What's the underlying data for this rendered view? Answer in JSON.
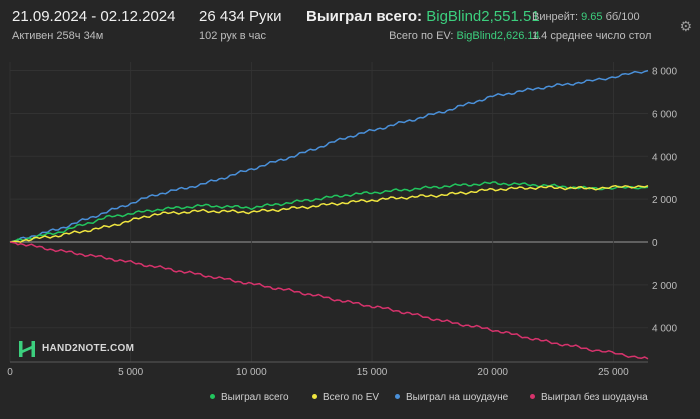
{
  "header": {
    "date_range": "21.09.2024 - 02.12.2024",
    "active": "Активен 258ч 34м",
    "hands": "26 434 Руки",
    "hands_per_hour": "102 рук в час",
    "won_label": "Выиграл всего:",
    "won_value": "BigBlind2,551.51",
    "ev_label": "Всего по EV:",
    "ev_value": "BigBlind2,626.14",
    "winrate_label": "Винрейт:",
    "winrate_value": "9.65",
    "winrate_suffix": "бб/100",
    "avg_tables": "1.4 среднее число стол",
    "settings_icon": "gear-icon"
  },
  "logo": {
    "text": "HAND2NOTE.COM"
  },
  "legend": {
    "won": "Выиграл всего",
    "ev": "Всего по EV",
    "showdown": "Выиграл на шоудауне",
    "nonshowdown": "Выиграл без шоудауна"
  },
  "colors": {
    "won": "#22c55e",
    "ev": "#f0e640",
    "showdown": "#4a90d9",
    "nonshowdown": "#d6336c",
    "background": "#262626",
    "accent_text": "#3ccf7e"
  },
  "chart_data": {
    "type": "line",
    "xlim": [
      0,
      26434
    ],
    "ylim": [
      -5600,
      8400
    ],
    "x_ticks": [
      0,
      5000,
      10000,
      15000,
      20000,
      25000
    ],
    "x_tick_labels": [
      "0",
      "5 000",
      "10 000",
      "15 000",
      "20 000",
      "25 000"
    ],
    "y_ticks": [
      8000,
      6000,
      4000,
      2000,
      0,
      -2000,
      -4000
    ],
    "y_tick_labels": [
      "8 000",
      "6 000",
      "4 000",
      "2 000",
      "0",
      "2 000",
      "4 000"
    ],
    "grid": true,
    "legend_position": "bottom",
    "series": [
      {
        "name": "Выиграл на шоудауне",
        "x": [
          0,
          2000,
          4000,
          6000,
          8000,
          10000,
          12000,
          14000,
          16000,
          18000,
          20000,
          22000,
          24000,
          26434
        ],
        "values": [
          0,
          600,
          1400,
          2200,
          2700,
          3400,
          4100,
          4900,
          5500,
          6100,
          6800,
          7200,
          7500,
          8000
        ]
      },
      {
        "name": "Выиграл всего",
        "x": [
          0,
          2000,
          4000,
          6000,
          8000,
          10000,
          12000,
          14000,
          16000,
          18000,
          20000,
          22000,
          24000,
          26434
        ],
        "values": [
          0,
          450,
          1150,
          1500,
          1700,
          1600,
          1900,
          2200,
          2400,
          2600,
          2750,
          2650,
          2500,
          2551
        ]
      },
      {
        "name": "Всего по EV",
        "x": [
          0,
          2000,
          4000,
          6000,
          8000,
          10000,
          12000,
          14000,
          16000,
          18000,
          20000,
          22000,
          24000,
          26434
        ],
        "values": [
          0,
          300,
          700,
          1300,
          1450,
          1400,
          1600,
          1850,
          2050,
          2200,
          2450,
          2550,
          2500,
          2626
        ]
      },
      {
        "name": "Выиграл без шоудауна",
        "x": [
          0,
          2000,
          4000,
          6000,
          8000,
          10000,
          12000,
          14000,
          16000,
          18000,
          20000,
          22000,
          24000,
          26434
        ],
        "values": [
          0,
          -400,
          -750,
          -1150,
          -1550,
          -1950,
          -2350,
          -2800,
          -3200,
          -3700,
          -4100,
          -4600,
          -5000,
          -5450
        ]
      }
    ]
  }
}
